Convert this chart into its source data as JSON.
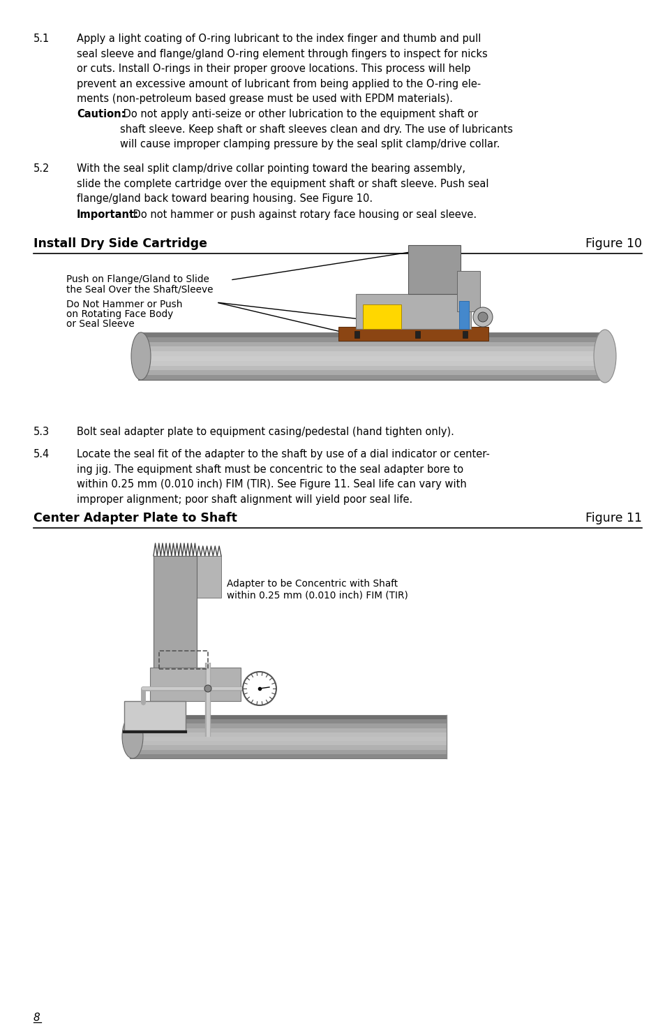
{
  "background_color": "#ffffff",
  "page_number": "8",
  "section_51_label": "5.1",
  "section_52_label": "5.2",
  "section_53_label": "5.3",
  "section_54_label": "5.4",
  "caution_bold": "Caution:",
  "important_bold": "Important:",
  "fig10_title_left": "Install Dry Side Cartridge",
  "fig10_title_right": "Figure 10",
  "fig10_label1_line1": "Push on Flange/Gland to Slide",
  "fig10_label1_line2": "the Seal Over the Shaft/Sleeve",
  "fig10_label2_line1": "Do Not Hammer or Push",
  "fig10_label2_line2": "on Rotating Face Body",
  "fig10_label2_line3": "or Seal Sleeve",
  "section_53_text": "Bolt seal adapter plate to equipment casing/pedestal (hand tighten only).",
  "fig11_title_left": "Center Adapter Plate to Shaft",
  "fig11_title_right": "Figure 11",
  "fig11_label1_line1": "Adapter to be Concentric with Shaft",
  "fig11_label1_line2": "within 0.25 mm (0.010 inch) FIM (TIR)"
}
